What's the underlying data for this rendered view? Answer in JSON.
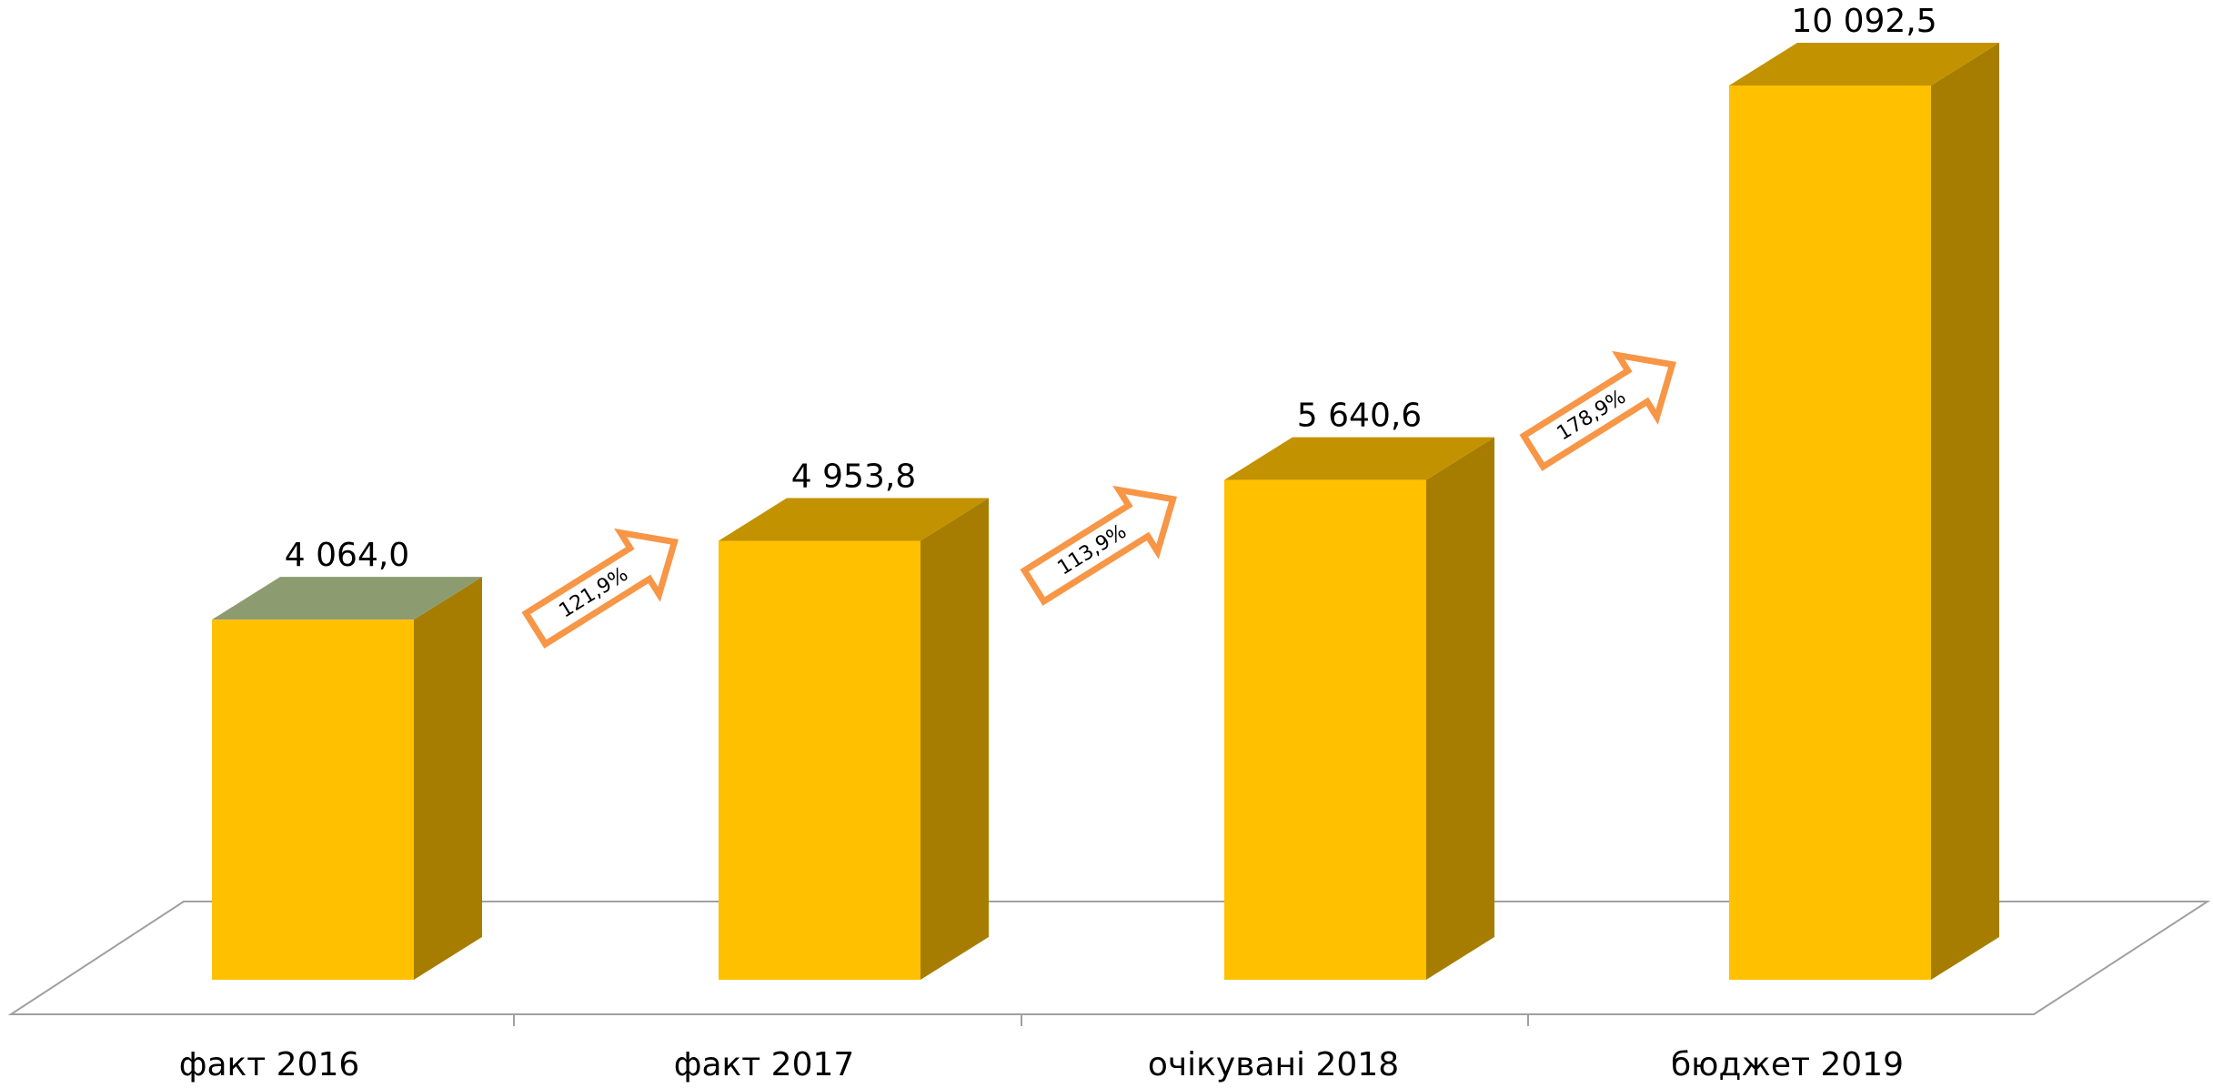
{
  "chart_data": {
    "type": "bar3d",
    "categories": [
      "факт 2016",
      "факт 2017",
      "очікувані 2018",
      "бюджет 2019"
    ],
    "values": [
      4064.0,
      4953.8,
      5640.6,
      10092.5
    ],
    "value_labels": [
      "4 064,0",
      "4 953,8",
      "5 640,6",
      "10 092,5"
    ],
    "color": "#ffc000",
    "growth": [
      121.9,
      113.9,
      178.9
    ],
    "growth_labels": [
      "121,9%",
      "113,9%",
      "178,9%"
    ],
    "growth_color": "#f79646"
  }
}
